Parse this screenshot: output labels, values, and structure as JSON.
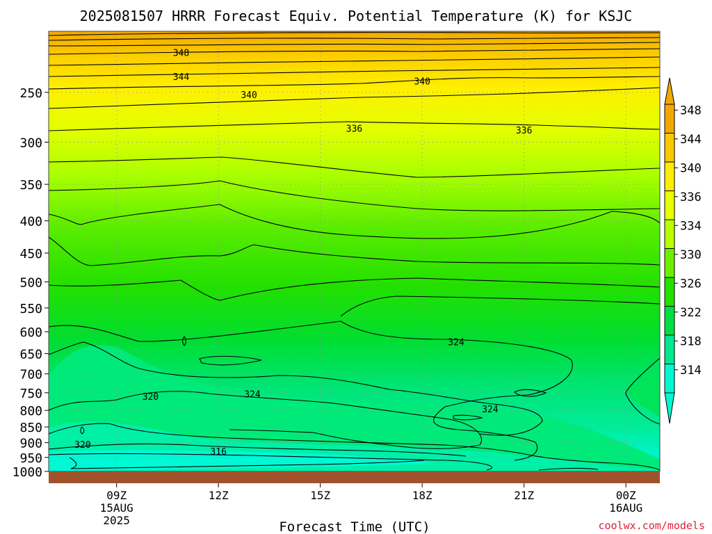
{
  "chart_data": {
    "type": "heatmap",
    "title": "2025081507 HRRR Forecast Equiv. Potential Temperature (K) for KSJC",
    "xlabel": "Forecast Time (UTC)",
    "ylabel": "",
    "credit": "coolwx.com/models",
    "x_ticks": [
      {
        "hour": 9,
        "label": "09Z",
        "date": "15AUG",
        "year": "2025"
      },
      {
        "hour": 12,
        "label": "12Z"
      },
      {
        "hour": 15,
        "label": "15Z"
      },
      {
        "hour": 18,
        "label": "18Z"
      },
      {
        "hour": 21,
        "label": "21Z"
      },
      {
        "hour": 24,
        "label": "00Z",
        "date": "16AUG"
      }
    ],
    "xlim": [
      7,
      25
    ],
    "y_ticks": [
      250,
      300,
      350,
      400,
      450,
      500,
      550,
      600,
      650,
      700,
      750,
      800,
      850,
      900,
      950,
      1000
    ],
    "ylim": [
      1000,
      200
    ],
    "grid": true,
    "colorbar": {
      "labels": [
        348,
        344,
        340,
        336,
        334,
        330,
        326,
        322,
        318,
        314
      ],
      "colors": [
        "#f2a800",
        "#f8c800",
        "#ffec00",
        "#e8ff00",
        "#b8ff00",
        "#6cf000",
        "#22e000",
        "#00e040",
        "#00e890",
        "#00f8d0"
      ]
    },
    "contour_labels": [
      {
        "value": "348",
        "hour": 10.9,
        "p": 216
      },
      {
        "value": "344",
        "hour": 10.9,
        "p": 236
      },
      {
        "value": "340",
        "hour": 12.9,
        "p": 252
      },
      {
        "value": "340",
        "hour": 18.0,
        "p": 240
      },
      {
        "value": "336",
        "hour": 16.0,
        "p": 285
      },
      {
        "value": "336",
        "hour": 21.0,
        "p": 287
      },
      {
        "value": "324",
        "hour": 19.0,
        "p": 622
      },
      {
        "value": "320",
        "hour": 10.0,
        "p": 760
      },
      {
        "value": "324",
        "hour": 13.0,
        "p": 753
      },
      {
        "value": "324",
        "hour": 20.0,
        "p": 795
      },
      {
        "value": "320",
        "hour": 8.0,
        "p": 906
      },
      {
        "value": "316",
        "hour": 12.0,
        "p": 929
      }
    ],
    "surface_color": "#a0522d"
  }
}
